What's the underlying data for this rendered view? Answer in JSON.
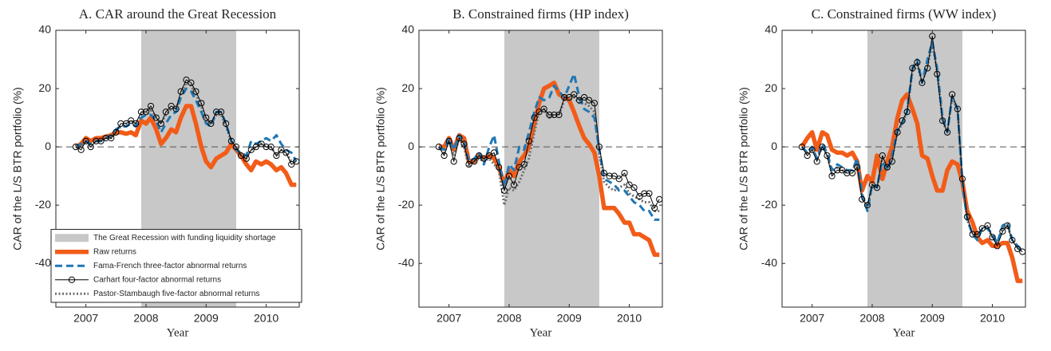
{
  "chart_data": [
    {
      "type": "line",
      "title": "A. CAR around the Great Recession",
      "xlabel": "Year",
      "ylabel": "CAR of the L/S BTR portfolio (%)",
      "xlim": [
        2006.5,
        2010.55
      ],
      "xticks": [
        2007,
        2008,
        2009,
        2010
      ],
      "ylim": [
        -55,
        40
      ],
      "yticks": [
        -40,
        -20,
        0,
        20,
        40
      ],
      "reference_line": 0,
      "legend": "lower left",
      "shade": {
        "label": "The Great Recession with funding liquidity shortage",
        "x": [
          2007.92,
          2009.5
        ],
        "color": "#c8c8c8"
      },
      "x": [
        2006.83,
        2006.92,
        2007.0,
        2007.08,
        2007.17,
        2007.25,
        2007.33,
        2007.42,
        2007.5,
        2007.58,
        2007.67,
        2007.75,
        2007.83,
        2007.92,
        2008.0,
        2008.08,
        2008.17,
        2008.25,
        2008.33,
        2008.42,
        2008.5,
        2008.58,
        2008.67,
        2008.75,
        2008.83,
        2008.92,
        2009.0,
        2009.08,
        2009.17,
        2009.25,
        2009.33,
        2009.42,
        2009.5,
        2009.58,
        2009.67,
        2009.75,
        2009.83,
        2009.92,
        2010.0,
        2010.08,
        2010.17,
        2010.25,
        2010.33,
        2010.42,
        2010.5
      ],
      "series": [
        {
          "name": "Raw returns",
          "color": "#f25c19",
          "linestyle": "solid",
          "values": [
            0,
            1,
            3,
            2,
            3,
            3,
            3.5,
            4,
            5,
            5,
            4.5,
            5,
            4,
            9,
            8,
            10,
            6,
            1,
            3,
            6,
            5,
            10,
            14,
            14,
            8,
            0,
            -5,
            -7,
            -4,
            -3,
            -2,
            1,
            -1,
            -3,
            -6,
            -8,
            -5,
            -6,
            -5,
            -6,
            -8,
            -7,
            -9,
            -13,
            -13
          ]
        },
        {
          "name": "Fama-French three-factor abnormal returns",
          "color": "#1f77b4",
          "linestyle": "dashed",
          "values": [
            0,
            1,
            2,
            1,
            2,
            2,
            3,
            4,
            6,
            7,
            7,
            8,
            7,
            10,
            11,
            11,
            9,
            5,
            8,
            11,
            12,
            17,
            20,
            19,
            16,
            12,
            8,
            7,
            12,
            12,
            8,
            2,
            -1,
            -2,
            -3,
            2,
            1,
            2,
            3,
            2,
            4,
            1,
            -1,
            -2,
            -5
          ]
        },
        {
          "name": "Carhart four-factor abnormal returns",
          "color": "#000000",
          "linestyle": "solid",
          "marker": "o",
          "values": [
            0,
            -1,
            2,
            0,
            2,
            2,
            3,
            3,
            5,
            8,
            8,
            9,
            8,
            12,
            12,
            14,
            10,
            8,
            12,
            14,
            13,
            19,
            23,
            22,
            19,
            15,
            10,
            8,
            12,
            12,
            8,
            2,
            0,
            -3,
            -4,
            -1,
            0,
            1,
            0,
            0,
            -3,
            -1,
            -2,
            -6,
            -5
          ]
        },
        {
          "name": "Pastor-Stambaugh five-factor abnormal returns",
          "color": "#6e6e6e",
          "linestyle": "dotted",
          "values": [
            0,
            0,
            2,
            1,
            2,
            2,
            3,
            3,
            5,
            7,
            8,
            9,
            8,
            11,
            11,
            13,
            10,
            8,
            11,
            13,
            13,
            18,
            22,
            21,
            18,
            14,
            9,
            8,
            11,
            11,
            7,
            2,
            -1,
            -3,
            -4,
            -1,
            0,
            1,
            0,
            0,
            -3,
            -1,
            -2,
            -5,
            -5
          ]
        }
      ]
    },
    {
      "type": "line",
      "title": "B. Constrained firms (HP index)",
      "xlabel": "Year",
      "ylabel": "CAR of the L/S BTR portfolio (%)",
      "xlim": [
        2006.5,
        2010.55
      ],
      "xticks": [
        2007,
        2008,
        2009,
        2010
      ],
      "ylim": [
        -55,
        40
      ],
      "yticks": [
        -40,
        -20,
        0,
        20,
        40
      ],
      "reference_line": 0,
      "shade": {
        "x": [
          2007.92,
          2009.5
        ],
        "color": "#c8c8c8"
      },
      "x": [
        2006.83,
        2006.92,
        2007.0,
        2007.08,
        2007.17,
        2007.25,
        2007.33,
        2007.42,
        2007.5,
        2007.58,
        2007.67,
        2007.75,
        2007.83,
        2007.92,
        2008.0,
        2008.08,
        2008.17,
        2008.25,
        2008.33,
        2008.42,
        2008.5,
        2008.58,
        2008.67,
        2008.75,
        2008.83,
        2008.92,
        2009.0,
        2009.08,
        2009.17,
        2009.25,
        2009.33,
        2009.42,
        2009.5,
        2009.58,
        2009.67,
        2009.75,
        2009.83,
        2009.92,
        2010.0,
        2010.08,
        2010.17,
        2010.25,
        2010.33,
        2010.42,
        2010.5
      ],
      "series": [
        {
          "color": "#f25c19",
          "linestyle": "solid",
          "values": [
            0,
            0,
            3,
            -1,
            4,
            3,
            -5,
            -5,
            -3,
            -4,
            -3,
            -4,
            -7,
            -13,
            -8,
            -10,
            -5,
            -3,
            0,
            8,
            15,
            20,
            21,
            22,
            18,
            17,
            16,
            12,
            7,
            3,
            1,
            -2,
            -10,
            -21,
            -21,
            -21,
            -23,
            -26,
            -26,
            -30,
            -30,
            -31,
            -32,
            -37,
            -37
          ]
        },
        {
          "color": "#1f77b4",
          "linestyle": "dashed",
          "values": [
            0,
            -1,
            3,
            -1,
            4,
            2,
            -5,
            -4,
            -2,
            -6,
            0,
            4,
            -5,
            -14,
            -6,
            -8,
            0,
            -1,
            5,
            12,
            17,
            16,
            17,
            21,
            19,
            17,
            21,
            25,
            17,
            13,
            12,
            10,
            -1,
            -11,
            -12,
            -13,
            -15,
            -15,
            -17,
            -19,
            -20,
            -22,
            -22,
            -25,
            -25
          ]
        },
        {
          "color": "#000000",
          "linestyle": "solid",
          "marker": "o",
          "values": [
            0,
            -3,
            2,
            -5,
            3,
            1,
            -6,
            -5,
            -3,
            -4,
            -3,
            -2,
            -7,
            -15,
            -10,
            -13,
            -7,
            -6,
            2,
            10,
            12,
            13,
            11,
            11,
            11,
            17,
            17,
            18,
            16,
            17,
            16,
            15,
            0,
            -9,
            -10,
            -10,
            -11,
            -9,
            -13,
            -14,
            -17,
            -16,
            -16,
            -21,
            -18
          ]
        },
        {
          "color": "#6e6e6e",
          "linestyle": "dotted",
          "values": [
            0,
            -2,
            2,
            -3,
            3,
            0,
            -7,
            -5,
            -4,
            -5,
            -4,
            -6,
            -8,
            -20,
            -14,
            -15,
            -12,
            -8,
            -4,
            5,
            12,
            13,
            10,
            11,
            11,
            16,
            16,
            17,
            15,
            15,
            14,
            12,
            -2,
            -12,
            -14,
            -15,
            -14,
            -13,
            -16,
            -17,
            -18,
            -19,
            -19,
            -22,
            -22
          ]
        }
      ]
    },
    {
      "type": "line",
      "title": "C. Constrained firms (WW index)",
      "xlabel": "Year",
      "ylabel": "CAR of the L/S BTR portfolio (%)",
      "xlim": [
        2006.5,
        2010.55
      ],
      "xticks": [
        2007,
        2008,
        2009,
        2010
      ],
      "ylim": [
        -55,
        40
      ],
      "yticks": [
        -40,
        -20,
        0,
        20,
        40
      ],
      "reference_line": 0,
      "shade": {
        "x": [
          2007.92,
          2009.5
        ],
        "color": "#c8c8c8"
      },
      "x": [
        2006.83,
        2006.92,
        2007.0,
        2007.08,
        2007.17,
        2007.25,
        2007.33,
        2007.42,
        2007.5,
        2007.58,
        2007.67,
        2007.75,
        2007.83,
        2007.92,
        2008.0,
        2008.08,
        2008.17,
        2008.25,
        2008.33,
        2008.42,
        2008.5,
        2008.58,
        2008.67,
        2008.75,
        2008.83,
        2008.92,
        2009.0,
        2009.08,
        2009.17,
        2009.25,
        2009.33,
        2009.42,
        2009.5,
        2009.58,
        2009.67,
        2009.75,
        2009.83,
        2009.92,
        2010.0,
        2010.08,
        2010.17,
        2010.25,
        2010.33,
        2010.42,
        2010.5
      ],
      "series": [
        {
          "color": "#f25c19",
          "linestyle": "solid",
          "values": [
            0,
            3,
            5,
            -1,
            5,
            4,
            -1,
            -2,
            -2,
            -3,
            -2,
            -5,
            -15,
            -10,
            -12,
            -3,
            -11,
            -5,
            0,
            10,
            16,
            18,
            13,
            8,
            -3,
            -4,
            -10,
            -15,
            -15,
            -8,
            -5,
            -6,
            -12,
            -22,
            -26,
            -31,
            -33,
            -32,
            -34,
            -34,
            -33,
            -33,
            -38,
            -46,
            -46
          ]
        },
        {
          "color": "#1f77b4",
          "linestyle": "dashed",
          "values": [
            0,
            -2,
            0,
            -4,
            1,
            -2,
            -8,
            -6,
            -7,
            -8,
            -8,
            -4,
            -16,
            -22,
            -13,
            -14,
            -5,
            -8,
            -3,
            6,
            8,
            12,
            27,
            30,
            22,
            30,
            36,
            27,
            10,
            5,
            17,
            13,
            -12,
            -25,
            -30,
            -32,
            -28,
            -28,
            -30,
            -33,
            -27,
            -26,
            -32,
            -34,
            -36
          ]
        },
        {
          "color": "#000000",
          "linestyle": "solid",
          "marker": "o",
          "values": [
            0,
            -3,
            -1,
            -5,
            0,
            -3,
            -10,
            -8,
            -8,
            -9,
            -9,
            -7,
            -18,
            -20,
            -13,
            -14,
            -3,
            -7,
            -5,
            5,
            9,
            12,
            27,
            29,
            22,
            27,
            38,
            25,
            9,
            5,
            18,
            13,
            -11,
            -24,
            -30,
            -30,
            -28,
            -27,
            -31,
            -34,
            -29,
            -27,
            -32,
            -35,
            -36
          ]
        },
        {
          "color": "#6e6e6e",
          "linestyle": "dotted",
          "values": [
            0,
            -2,
            0,
            -4,
            0,
            -3,
            -9,
            -7,
            -8,
            -9,
            -8,
            -5,
            -17,
            -21,
            -13,
            -14,
            -4,
            -8,
            -4,
            5,
            8,
            12,
            26,
            28,
            22,
            28,
            35,
            26,
            9,
            5,
            17,
            13,
            -12,
            -25,
            -30,
            -31,
            -28,
            -28,
            -31,
            -33,
            -28,
            -27,
            -32,
            -34,
            -36
          ]
        }
      ]
    }
  ]
}
